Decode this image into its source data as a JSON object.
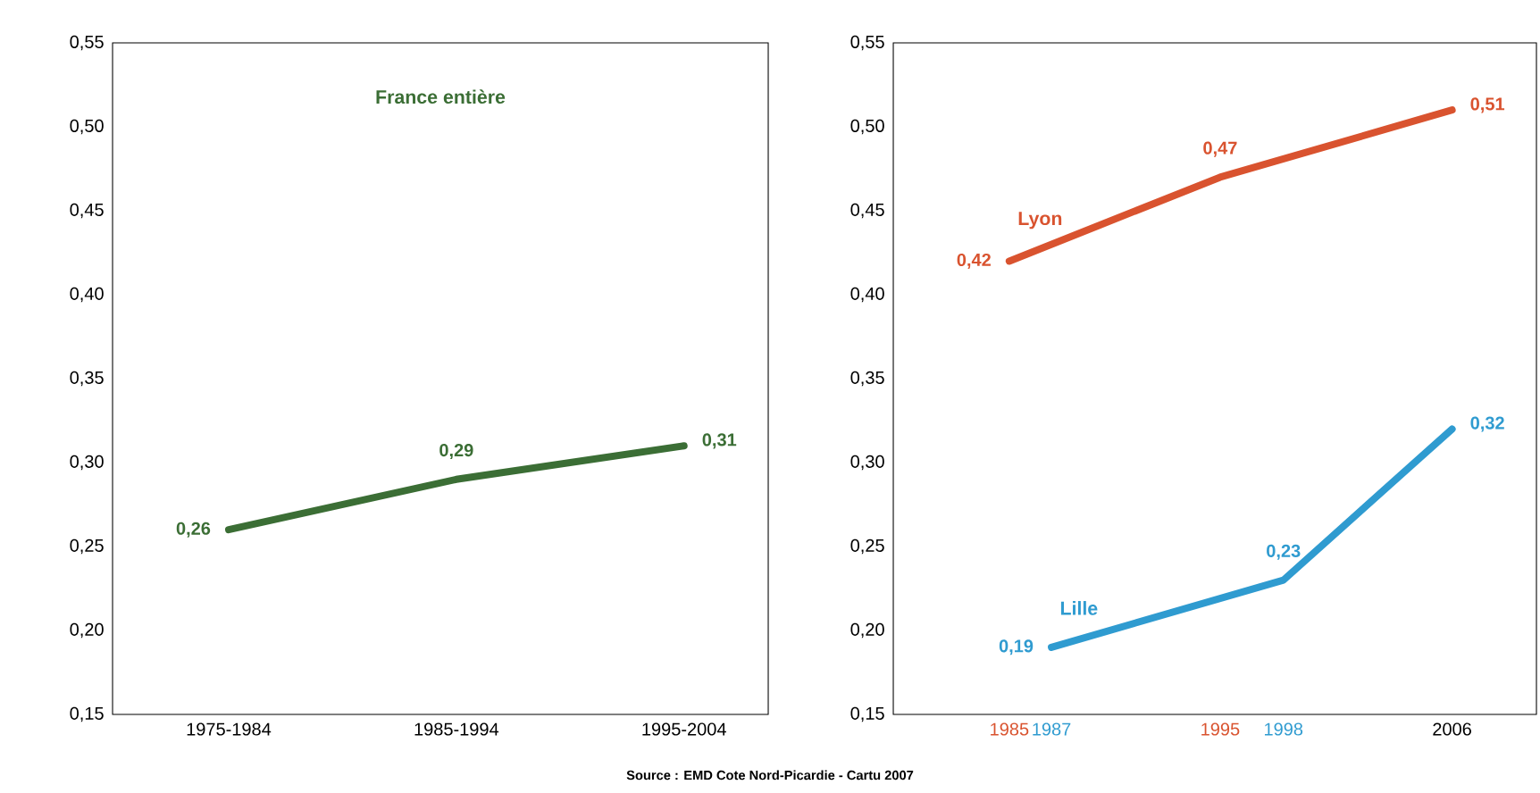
{
  "chart_data": [
    {
      "type": "line",
      "categories": [
        "1975-1984",
        "1985-1994",
        "1995-2004"
      ],
      "series": [
        {
          "name": "France entière",
          "color": "#3b6e35",
          "values": [
            0.26,
            0.29,
            0.31
          ],
          "value_labels": [
            "0,26",
            "0,29",
            "0,31"
          ]
        }
      ],
      "ylim": [
        0.15,
        0.55
      ],
      "yticks": [
        {
          "value": 0.15,
          "label": "0,15"
        },
        {
          "value": 0.2,
          "label": "0,20"
        },
        {
          "value": 0.25,
          "label": "0,25"
        },
        {
          "value": 0.3,
          "label": "0,30"
        },
        {
          "value": 0.35,
          "label": "0,35"
        },
        {
          "value": 0.4,
          "label": "0,40"
        },
        {
          "value": 0.45,
          "label": "0,45"
        },
        {
          "value": 0.5,
          "label": "0,50"
        },
        {
          "value": 0.55,
          "label": "0,55"
        }
      ]
    },
    {
      "type": "line",
      "xlim": [
        1979.5,
        2010
      ],
      "xticks": [
        1985,
        1987,
        1995,
        1998,
        2006
      ],
      "series": [
        {
          "name": "Lyon",
          "color": "#d9532f",
          "x": [
            1985,
            1995,
            2006
          ],
          "values": [
            0.42,
            0.47,
            0.51
          ],
          "value_labels": [
            "0,42",
            "0,47",
            "0,51"
          ]
        },
        {
          "name": "Lille",
          "color": "#2f9bd0",
          "x": [
            1987,
            1998,
            2006
          ],
          "values": [
            0.19,
            0.23,
            0.32
          ],
          "value_labels": [
            "0,19",
            "0,23",
            "0,32"
          ]
        }
      ],
      "ylim": [
        0.15,
        0.55
      ],
      "yticks": [
        {
          "value": 0.15,
          "label": "0,15"
        },
        {
          "value": 0.2,
          "label": "0,20"
        },
        {
          "value": 0.25,
          "label": "0,25"
        },
        {
          "value": 0.3,
          "label": "0,30"
        },
        {
          "value": 0.35,
          "label": "0,35"
        },
        {
          "value": 0.4,
          "label": "0,40"
        },
        {
          "value": 0.45,
          "label": "0,45"
        },
        {
          "value": 0.5,
          "label": "0,50"
        },
        {
          "value": 0.55,
          "label": "0,55"
        }
      ],
      "annotations": [
        "Source : EMD Cote Nord-Picardie - Cartu 2007"
      ]
    }
  ]
}
